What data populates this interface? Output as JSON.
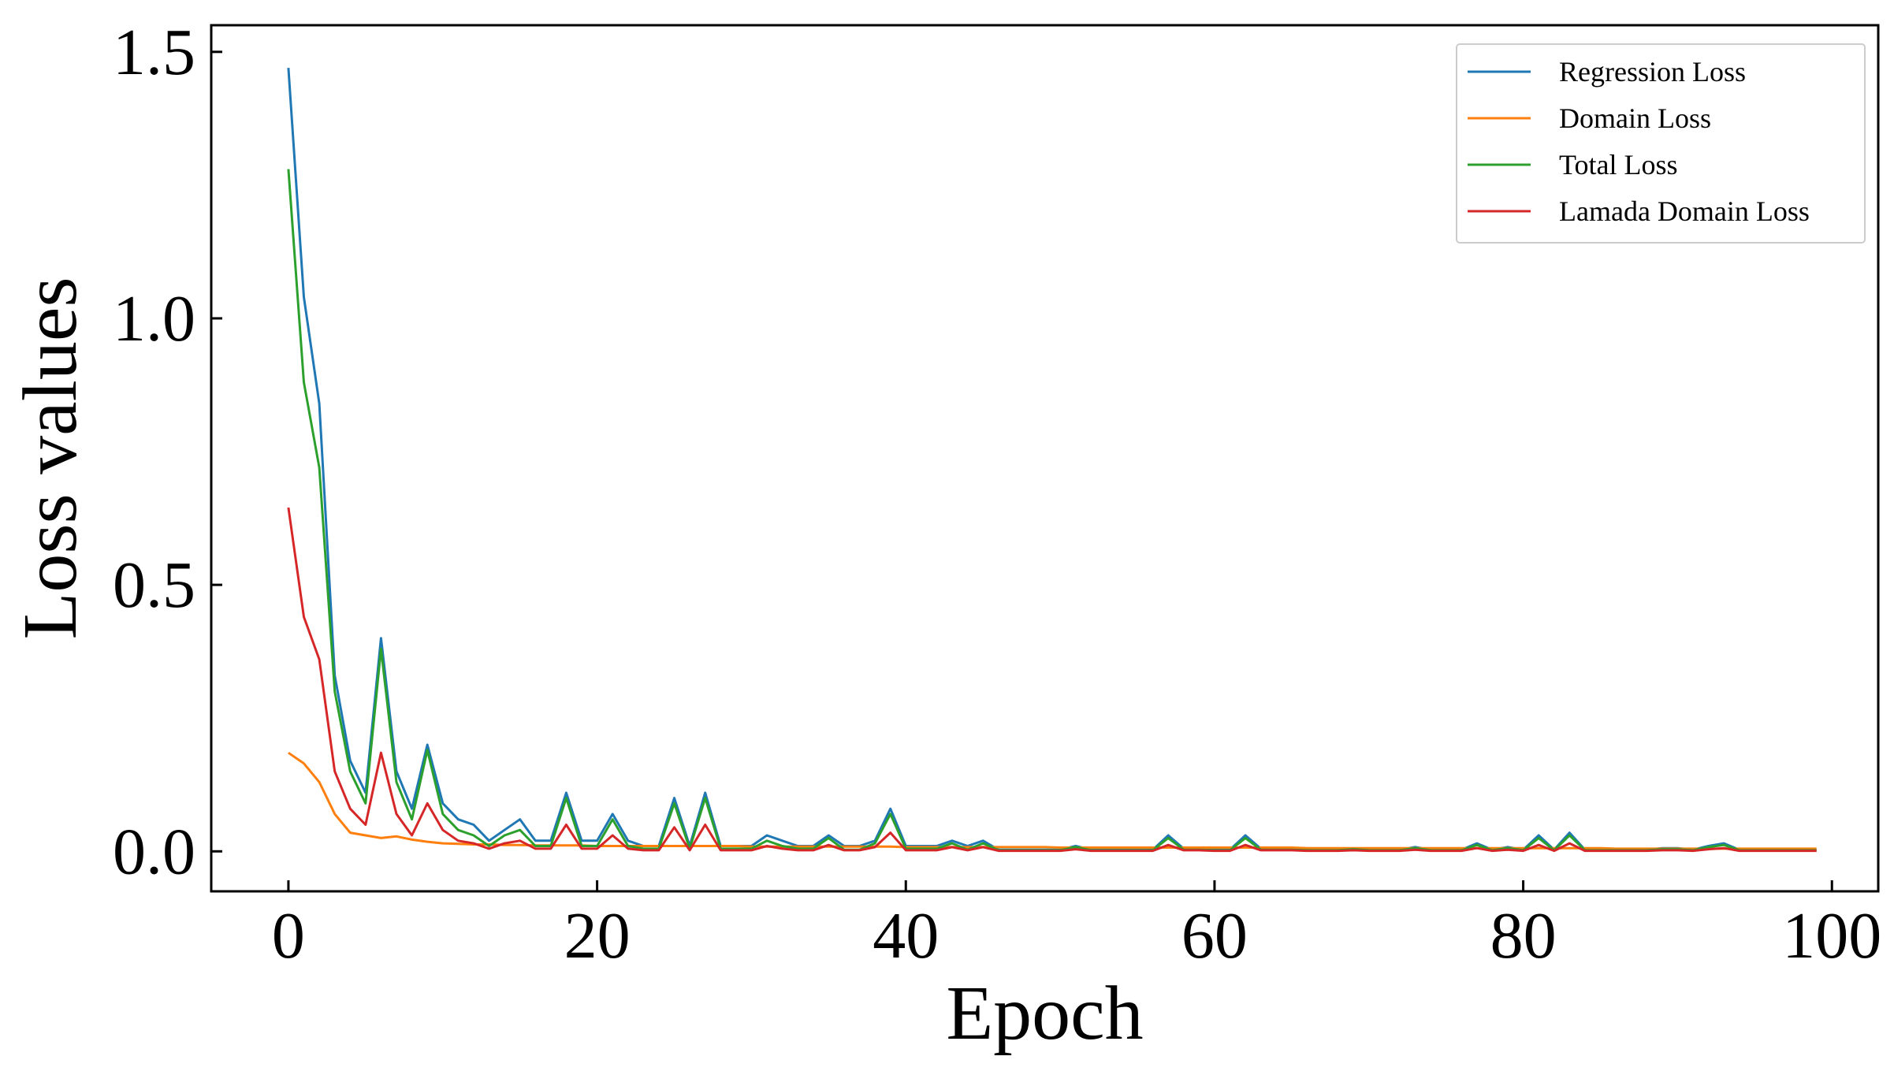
{
  "chart_data": {
    "type": "line",
    "title": "",
    "xlabel": "Epoch",
    "ylabel": "Loss values",
    "xlim": [
      -5,
      103
    ],
    "ylim": [
      -0.075,
      1.55
    ],
    "xticks": [
      0,
      20,
      40,
      60,
      80,
      100
    ],
    "xtick_labels": [
      "0",
      "20",
      "40",
      "60",
      "80",
      "100"
    ],
    "yticks": [
      0.0,
      0.5,
      1.0,
      1.5
    ],
    "ytick_labels": [
      "0.0",
      "0.5",
      "1.0",
      "1.5"
    ],
    "grid": false,
    "legend_position": "top-right",
    "series": [
      {
        "name": "Regression Loss",
        "color": "#1f77b4",
        "x": [
          0,
          1,
          2,
          3,
          4,
          5,
          6,
          7,
          8,
          9,
          10,
          11,
          12,
          13,
          14,
          15,
          16,
          17,
          18,
          19,
          20,
          21,
          22,
          23,
          24,
          25,
          26,
          27,
          28,
          29,
          30,
          31,
          32,
          33,
          34,
          35,
          36,
          37,
          38,
          39,
          40,
          41,
          42,
          43,
          44,
          45,
          46,
          47,
          48,
          49,
          50,
          51,
          52,
          53,
          54,
          55,
          56,
          57,
          58,
          59,
          60,
          61,
          62,
          63,
          64,
          65,
          66,
          67,
          68,
          69,
          70,
          71,
          72,
          73,
          74,
          75,
          76,
          77,
          78,
          79,
          80,
          81,
          82,
          83,
          84,
          85,
          86,
          87,
          88,
          89,
          90,
          91,
          92,
          93,
          94,
          95,
          96,
          97,
          98,
          99
        ],
        "values": [
          1.47,
          1.04,
          0.84,
          0.33,
          0.17,
          0.11,
          0.4,
          0.15,
          0.08,
          0.2,
          0.09,
          0.06,
          0.05,
          0.02,
          0.04,
          0.06,
          0.02,
          0.02,
          0.11,
          0.02,
          0.02,
          0.07,
          0.02,
          0.01,
          0.01,
          0.1,
          0.01,
          0.11,
          0.01,
          0.01,
          0.01,
          0.03,
          0.02,
          0.01,
          0.01,
          0.03,
          0.01,
          0.01,
          0.02,
          0.08,
          0.01,
          0.01,
          0.01,
          0.02,
          0.01,
          0.02,
          0.003,
          0.003,
          0.003,
          0.003,
          0.003,
          0.01,
          0.003,
          0.003,
          0.003,
          0.003,
          0.003,
          0.03,
          0.005,
          0.005,
          0.003,
          0.003,
          0.03,
          0.005,
          0.005,
          0.005,
          0.003,
          0.003,
          0.003,
          0.005,
          0.003,
          0.003,
          0.003,
          0.008,
          0.003,
          0.003,
          0.003,
          0.015,
          0.003,
          0.008,
          0.003,
          0.03,
          0.003,
          0.035,
          0.003,
          0.003,
          0.003,
          0.003,
          0.003,
          0.006,
          0.006,
          0.003,
          0.01,
          0.015,
          0.003,
          0.003,
          0.003,
          0.003,
          0.003,
          0.003
        ]
      },
      {
        "name": "Domain Loss",
        "color": "#ff7f0e",
        "x": [
          0,
          1,
          2,
          3,
          4,
          5,
          6,
          7,
          8,
          9,
          10,
          11,
          12,
          13,
          14,
          15,
          16,
          17,
          18,
          19,
          20,
          21,
          22,
          23,
          24,
          25,
          26,
          27,
          28,
          29,
          30,
          31,
          32,
          33,
          34,
          35,
          36,
          37,
          38,
          39,
          40,
          41,
          42,
          43,
          44,
          45,
          46,
          47,
          48,
          49,
          50,
          51,
          52,
          53,
          54,
          55,
          56,
          57,
          58,
          59,
          60,
          61,
          62,
          63,
          64,
          65,
          66,
          67,
          68,
          69,
          70,
          71,
          72,
          73,
          74,
          75,
          76,
          77,
          78,
          79,
          80,
          81,
          82,
          83,
          84,
          85,
          86,
          87,
          88,
          89,
          90,
          91,
          92,
          93,
          94,
          95,
          96,
          97,
          98,
          99
        ],
        "values": [
          0.185,
          0.165,
          0.13,
          0.07,
          0.035,
          0.03,
          0.025,
          0.028,
          0.022,
          0.018,
          0.015,
          0.014,
          0.013,
          0.013,
          0.012,
          0.012,
          0.011,
          0.011,
          0.011,
          0.011,
          0.01,
          0.01,
          0.01,
          0.01,
          0.01,
          0.01,
          0.01,
          0.01,
          0.01,
          0.01,
          0.009,
          0.009,
          0.009,
          0.009,
          0.009,
          0.009,
          0.009,
          0.009,
          0.009,
          0.009,
          0.008,
          0.008,
          0.008,
          0.008,
          0.008,
          0.008,
          0.008,
          0.008,
          0.008,
          0.008,
          0.007,
          0.007,
          0.007,
          0.007,
          0.007,
          0.007,
          0.007,
          0.007,
          0.007,
          0.007,
          0.007,
          0.007,
          0.007,
          0.007,
          0.007,
          0.007,
          0.006,
          0.006,
          0.006,
          0.006,
          0.006,
          0.006,
          0.006,
          0.006,
          0.006,
          0.006,
          0.006,
          0.006,
          0.006,
          0.006,
          0.006,
          0.006,
          0.006,
          0.006,
          0.006,
          0.006,
          0.005,
          0.005,
          0.005,
          0.005,
          0.005,
          0.005,
          0.005,
          0.005,
          0.005,
          0.005,
          0.005,
          0.005,
          0.005,
          0.005
        ]
      },
      {
        "name": "Total Loss",
        "color": "#2ca02c",
        "x": [
          0,
          1,
          2,
          3,
          4,
          5,
          6,
          7,
          8,
          9,
          10,
          11,
          12,
          13,
          14,
          15,
          16,
          17,
          18,
          19,
          20,
          21,
          22,
          23,
          24,
          25,
          26,
          27,
          28,
          29,
          30,
          31,
          32,
          33,
          34,
          35,
          36,
          37,
          38,
          39,
          40,
          41,
          42,
          43,
          44,
          45,
          46,
          47,
          48,
          49,
          50,
          51,
          52,
          53,
          54,
          55,
          56,
          57,
          58,
          59,
          60,
          61,
          62,
          63,
          64,
          65,
          66,
          67,
          68,
          69,
          70,
          71,
          72,
          73,
          74,
          75,
          76,
          77,
          78,
          79,
          80,
          81,
          82,
          83,
          84,
          85,
          86,
          87,
          88,
          89,
          90,
          91,
          92,
          93,
          94,
          95,
          96,
          97,
          98,
          99
        ],
        "values": [
          1.28,
          0.88,
          0.72,
          0.3,
          0.15,
          0.09,
          0.38,
          0.13,
          0.06,
          0.19,
          0.07,
          0.04,
          0.03,
          0.01,
          0.03,
          0.04,
          0.01,
          0.01,
          0.1,
          0.01,
          0.01,
          0.06,
          0.01,
          0.005,
          0.005,
          0.09,
          0.005,
          0.1,
          0.005,
          0.005,
          0.005,
          0.02,
          0.01,
          0.005,
          0.005,
          0.025,
          0.003,
          0.003,
          0.015,
          0.07,
          0.005,
          0.005,
          0.005,
          0.015,
          0.003,
          0.015,
          0.002,
          0.002,
          0.002,
          0.002,
          0.002,
          0.008,
          0.002,
          0.002,
          0.002,
          0.002,
          0.002,
          0.025,
          0.003,
          0.003,
          0.002,
          0.002,
          0.025,
          0.003,
          0.003,
          0.003,
          0.002,
          0.002,
          0.002,
          0.004,
          0.002,
          0.002,
          0.002,
          0.006,
          0.002,
          0.002,
          0.002,
          0.012,
          0.002,
          0.006,
          0.002,
          0.025,
          0.002,
          0.03,
          0.002,
          0.002,
          0.002,
          0.002,
          0.002,
          0.004,
          0.004,
          0.002,
          0.008,
          0.012,
          0.002,
          0.002,
          0.002,
          0.002,
          0.002,
          0.002
        ]
      },
      {
        "name": "Lamada Domain Loss",
        "color": "#d62728",
        "x": [
          0,
          1,
          2,
          3,
          4,
          5,
          6,
          7,
          8,
          9,
          10,
          11,
          12,
          13,
          14,
          15,
          16,
          17,
          18,
          19,
          20,
          21,
          22,
          23,
          24,
          25,
          26,
          27,
          28,
          29,
          30,
          31,
          32,
          33,
          34,
          35,
          36,
          37,
          38,
          39,
          40,
          41,
          42,
          43,
          44,
          45,
          46,
          47,
          48,
          49,
          50,
          51,
          52,
          53,
          54,
          55,
          56,
          57,
          58,
          59,
          60,
          61,
          62,
          63,
          64,
          65,
          66,
          67,
          68,
          69,
          70,
          71,
          72,
          73,
          74,
          75,
          76,
          77,
          78,
          79,
          80,
          81,
          82,
          83,
          84,
          85,
          86,
          87,
          88,
          89,
          90,
          91,
          92,
          93,
          94,
          95,
          96,
          97,
          98,
          99
        ],
        "values": [
          0.645,
          0.44,
          0.36,
          0.15,
          0.08,
          0.05,
          0.185,
          0.07,
          0.03,
          0.09,
          0.04,
          0.02,
          0.015,
          0.005,
          0.015,
          0.02,
          0.005,
          0.005,
          0.05,
          0.005,
          0.005,
          0.03,
          0.005,
          0.002,
          0.002,
          0.045,
          0.002,
          0.05,
          0.002,
          0.002,
          0.002,
          0.01,
          0.005,
          0.002,
          0.002,
          0.012,
          0.002,
          0.002,
          0.008,
          0.035,
          0.002,
          0.002,
          0.002,
          0.008,
          0.002,
          0.008,
          0.001,
          0.001,
          0.001,
          0.001,
          0.001,
          0.004,
          0.001,
          0.001,
          0.001,
          0.001,
          0.001,
          0.012,
          0.002,
          0.002,
          0.001,
          0.001,
          0.012,
          0.002,
          0.002,
          0.002,
          0.001,
          0.001,
          0.001,
          0.002,
          0.001,
          0.001,
          0.001,
          0.003,
          0.001,
          0.001,
          0.001,
          0.006,
          0.001,
          0.003,
          0.001,
          0.012,
          0.001,
          0.015,
          0.001,
          0.001,
          0.001,
          0.001,
          0.001,
          0.002,
          0.002,
          0.001,
          0.004,
          0.006,
          0.001,
          0.001,
          0.001,
          0.001,
          0.001,
          0.001
        ]
      }
    ]
  }
}
